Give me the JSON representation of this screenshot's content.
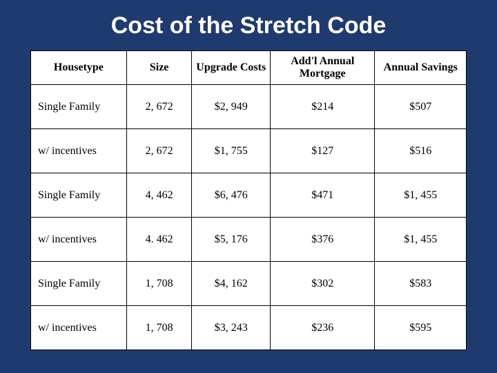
{
  "slide": {
    "title": "Cost of the Stretch Code",
    "background_color": "#1f3a6e",
    "title_color": "#ffffff",
    "title_fontsize": 34
  },
  "table": {
    "type": "table",
    "columns": [
      "Housetype",
      "Size",
      "Upgrade Costs",
      "Add'l Annual Mortgage",
      "Annual Savings"
    ],
    "column_widths_pct": [
      22,
      15,
      18,
      24,
      21
    ],
    "rows": [
      [
        "Single Family",
        "2, 672",
        "$2, 949",
        "$214",
        "$507"
      ],
      [
        "w/ incentives",
        "2, 672",
        "$1, 755",
        "$127",
        "$516"
      ],
      [
        "Single Family",
        "4, 462",
        "$6, 476",
        "$471",
        "$1, 455"
      ],
      [
        "w/ incentives",
        "4. 462",
        "$5, 176",
        "$376",
        "$1, 455"
      ],
      [
        "Single Family",
        "1, 708",
        "$4, 162",
        "$302",
        "$583"
      ],
      [
        "w/ incentives",
        "1, 708",
        "$3, 243",
        "$236",
        "$595"
      ]
    ],
    "header_font": "Times New Roman",
    "body_font": "Times New Roman",
    "header_fontsize": 16,
    "body_fontsize": 16,
    "border_color": "#000000",
    "cell_background": "#ffffff",
    "text_color": "#000000"
  }
}
